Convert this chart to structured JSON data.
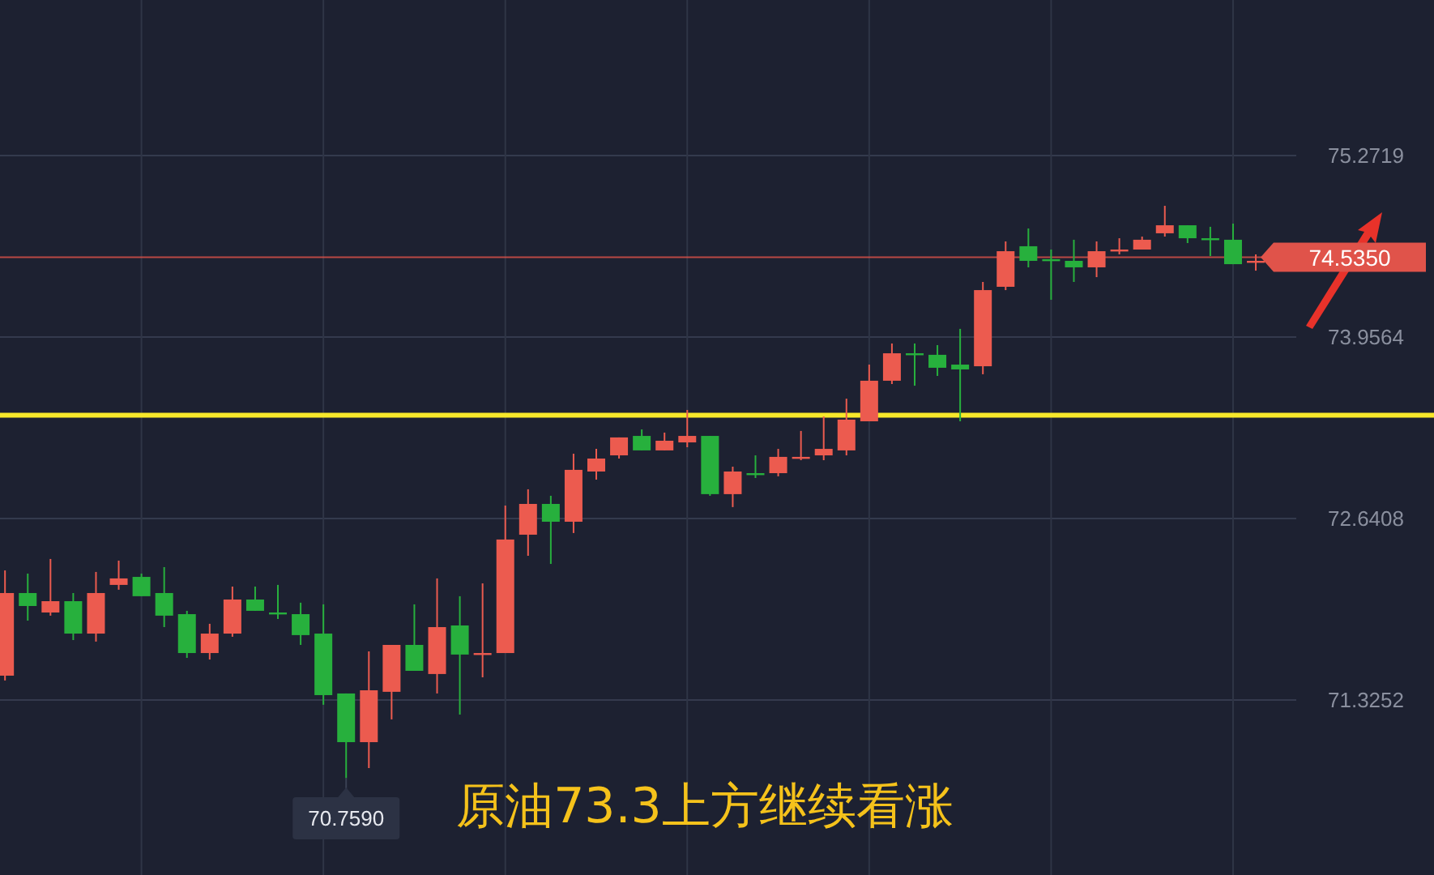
{
  "chart_data": {
    "type": "candlestick",
    "title": "原油73.3上方继续看涨",
    "categories": [
      null,
      null,
      null,
      null,
      null,
      null,
      null,
      null,
      null,
      null,
      null,
      null,
      null,
      null,
      null,
      null,
      null,
      null,
      null,
      null,
      null,
      null,
      null,
      null,
      null,
      null,
      null,
      null,
      null,
      null,
      null,
      null,
      null,
      null,
      null,
      null,
      null,
      null,
      null,
      null,
      null,
      null,
      null,
      null,
      null,
      null,
      null,
      null,
      null,
      null,
      null,
      null,
      null,
      null,
      null,
      null
    ],
    "ohlc": [
      [
        71.502,
        72.265,
        71.467,
        72.101
      ],
      [
        72.101,
        72.242,
        71.901,
        72.007
      ],
      [
        71.96,
        72.348,
        71.937,
        72.042
      ],
      [
        72.042,
        72.101,
        71.76,
        71.807
      ],
      [
        71.807,
        72.254,
        71.749,
        72.101
      ],
      [
        72.16,
        72.336,
        72.125,
        72.207
      ],
      [
        72.218,
        72.242,
        72.078,
        72.078
      ],
      [
        72.101,
        72.289,
        71.854,
        71.937
      ],
      [
        71.948,
        71.972,
        71.631,
        71.666
      ],
      [
        71.666,
        71.878,
        71.619,
        71.807
      ],
      [
        71.807,
        72.148,
        71.784,
        72.054
      ],
      [
        72.054,
        72.148,
        71.972,
        71.972
      ],
      [
        71.96,
        72.16,
        71.913,
        71.96
      ],
      [
        71.948,
        72.031,
        71.725,
        71.796
      ],
      [
        71.807,
        72.019,
        71.291,
        71.361
      ],
      [
        71.373,
        71.373,
        70.759,
        71.02
      ],
      [
        71.02,
        71.678,
        70.832,
        71.396
      ],
      [
        71.385,
        71.725,
        71.185,
        71.725
      ],
      [
        71.725,
        72.019,
        71.537,
        71.537
      ],
      [
        71.514,
        72.207,
        71.373,
        71.854
      ],
      [
        71.866,
        72.078,
        71.22,
        71.655
      ],
      [
        71.666,
        72.171,
        71.49,
        71.666
      ],
      [
        71.666,
        72.735,
        71.666,
        72.489
      ],
      [
        72.524,
        72.853,
        72.371,
        72.747
      ],
      [
        72.747,
        72.806,
        72.312,
        72.618
      ],
      [
        72.618,
        73.111,
        72.536,
        72.994
      ],
      [
        72.982,
        73.146,
        72.923,
        73.076
      ],
      [
        73.099,
        73.229,
        73.076,
        73.229
      ],
      [
        73.24,
        73.287,
        73.135,
        73.135
      ],
      [
        73.135,
        73.264,
        73.135,
        73.205
      ],
      [
        73.193,
        73.428,
        73.158,
        73.24
      ],
      [
        73.24,
        73.24,
        72.806,
        72.818
      ],
      [
        72.818,
        73.017,
        72.724,
        72.982
      ],
      [
        72.97,
        73.099,
        72.935,
        72.97
      ],
      [
        72.97,
        73.146,
        72.947,
        73.088
      ],
      [
        73.088,
        73.276,
        73.064,
        73.088
      ],
      [
        73.099,
        73.381,
        73.064,
        73.146
      ],
      [
        73.135,
        73.51,
        73.099,
        73.358
      ],
      [
        73.346,
        73.757,
        73.346,
        73.64
      ],
      [
        73.64,
        73.91,
        73.616,
        73.839
      ],
      [
        73.839,
        73.91,
        73.604,
        73.839
      ],
      [
        73.828,
        73.898,
        73.675,
        73.734
      ],
      [
        73.757,
        74.016,
        73.346,
        73.722
      ],
      [
        73.745,
        74.356,
        73.687,
        74.297
      ],
      [
        74.321,
        74.65,
        74.297,
        74.579
      ],
      [
        74.615,
        74.744,
        74.462,
        74.509
      ],
      [
        74.521,
        74.591,
        74.227,
        74.521
      ],
      [
        74.509,
        74.662,
        74.356,
        74.462
      ],
      [
        74.462,
        74.65,
        74.391,
        74.579
      ],
      [
        74.591,
        74.673,
        74.556,
        74.591
      ],
      [
        74.591,
        74.685,
        74.591,
        74.662
      ],
      [
        74.709,
        74.908,
        74.685,
        74.767
      ],
      [
        74.767,
        74.767,
        74.638,
        74.673
      ],
      [
        74.673,
        74.756,
        74.544,
        74.673
      ],
      [
        74.662,
        74.779,
        74.485,
        74.485
      ],
      [
        74.509,
        74.556,
        74.438,
        74.509
      ]
    ],
    "colors": [
      "#ec5b4f",
      "#27b03d",
      "#ec5b4f",
      "#27b03d",
      "#ec5b4f",
      "#ec5b4f",
      "#27b03d",
      "#27b03d",
      "#27b03d",
      "#ec5b4f",
      "#ec5b4f",
      "#27b03d",
      "#27b03d",
      "#27b03d",
      "#27b03d",
      "#27b03d",
      "#ec5b4f",
      "#ec5b4f",
      "#27b03d",
      "#ec5b4f",
      "#27b03d",
      "#ec5b4f",
      "#ec5b4f",
      "#ec5b4f",
      "#27b03d",
      "#ec5b4f",
      "#ec5b4f",
      "#ec5b4f",
      "#27b03d",
      "#ec5b4f",
      "#ec5b4f",
      "#27b03d",
      "#ec5b4f",
      "#27b03d",
      "#ec5b4f",
      "#ec5b4f",
      "#ec5b4f",
      "#ec5b4f",
      "#ec5b4f",
      "#ec5b4f",
      "#27b03d",
      "#27b03d",
      "#27b03d",
      "#ec5b4f",
      "#ec5b4f",
      "#27b03d",
      "#27b03d",
      "#27b03d",
      "#ec5b4f",
      "#ec5b4f",
      "#ec5b4f",
      "#ec5b4f",
      "#27b03d",
      "#27b03d",
      "#27b03d",
      "#ec5b4f"
    ],
    "ylim": [
      70.057,
      76.4
    ],
    "yticks": [
      75.2719,
      73.9564,
      72.6408,
      71.3252
    ],
    "grid": true,
    "tick_labels": "y",
    "ref_lines": [
      {
        "axis": "y",
        "value": 73.39,
        "color": "#f7e82a"
      },
      {
        "axis": "y",
        "value": 74.535,
        "label": "74.5350",
        "color": "#e0534a"
      }
    ],
    "annotations": [
      {
        "text": "70.7590",
        "y": 70.759
      }
    ]
  }
}
